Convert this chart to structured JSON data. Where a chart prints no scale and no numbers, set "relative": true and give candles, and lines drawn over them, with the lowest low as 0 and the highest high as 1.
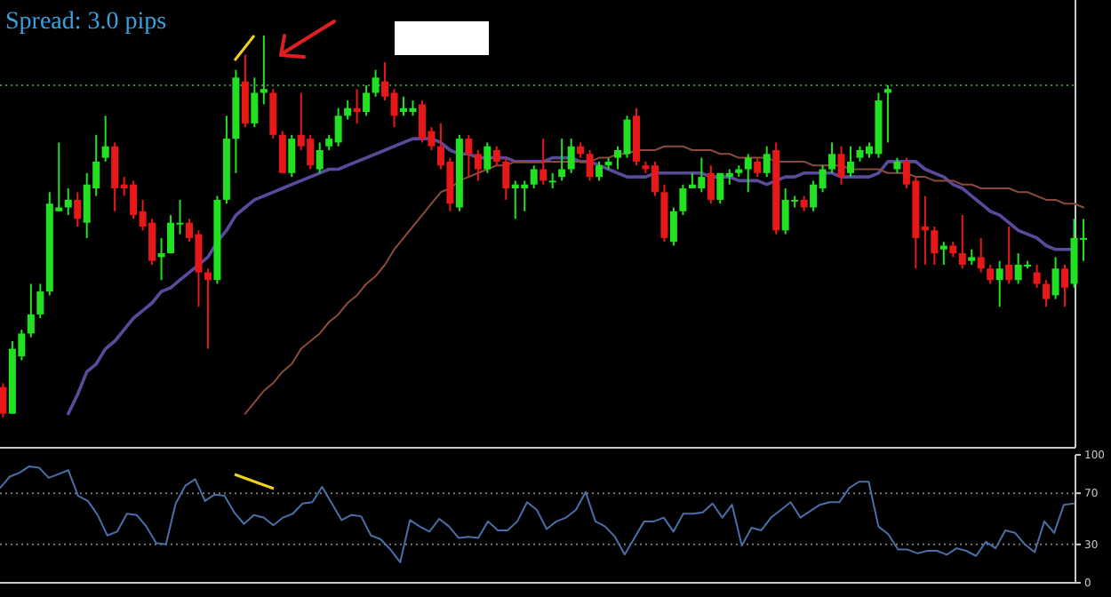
{
  "chart_data": [
    {
      "type": "candlestick",
      "title": "Spread: 3.0 pips",
      "relative": true,
      "tick_labels": false,
      "categories": [
        null,
        null,
        null,
        null,
        null,
        null,
        null,
        null,
        null,
        null,
        null,
        null,
        null,
        null,
        null,
        null,
        null,
        null,
        null,
        null,
        null,
        null,
        null,
        null,
        null,
        null,
        null,
        null,
        null,
        null,
        null,
        null,
        null,
        null,
        null,
        null,
        null,
        null,
        null,
        null,
        null,
        null,
        null,
        null,
        null,
        null,
        null,
        null,
        null,
        null,
        null,
        null,
        null,
        null,
        null,
        null,
        null,
        null,
        null,
        null,
        null,
        null,
        null,
        null,
        null,
        null,
        null,
        null,
        null,
        null,
        null,
        null,
        null,
        null,
        null,
        null,
        null,
        null,
        null,
        null,
        null,
        null,
        null,
        null,
        null,
        null,
        null,
        null,
        null,
        null,
        null,
        null,
        null,
        null,
        null,
        null,
        null,
        null,
        null,
        null,
        null,
        null,
        null,
        null,
        null,
        null,
        null,
        null,
        null,
        null,
        null,
        null,
        null,
        null,
        null,
        null,
        null
      ],
      "ohlc": [
        [
          0.08,
          0.09,
          0,
          0.01
        ],
        [
          0.01,
          0.2,
          0.01,
          0.18
        ],
        [
          0.16,
          0.23,
          0.15,
          0.22
        ],
        [
          0.22,
          0.35,
          0.21,
          0.27
        ],
        [
          0.27,
          0.35,
          0.26,
          0.33
        ],
        [
          0.33,
          0.59,
          0.32,
          0.56
        ],
        [
          0.54,
          0.72,
          0.54,
          0.55
        ],
        [
          0.55,
          0.6,
          0.53,
          0.57
        ],
        [
          0.57,
          0.59,
          0.5,
          0.52
        ],
        [
          0.51,
          0.64,
          0.47,
          0.61
        ],
        [
          0.6,
          0.74,
          0.58,
          0.67
        ],
        [
          0.68,
          0.79,
          0.67,
          0.71
        ],
        [
          0.71,
          0.72,
          0.54,
          0.6
        ],
        [
          0.61,
          0.63,
          0.58,
          0.6
        ],
        [
          0.61,
          0.62,
          0.52,
          0.53
        ],
        [
          0.54,
          0.57,
          0.49,
          0.5
        ],
        [
          0.51,
          0.52,
          0.4,
          0.41
        ],
        [
          0.42,
          0.47,
          0.36,
          0.43
        ],
        [
          0.43,
          0.53,
          0.43,
          0.51
        ],
        [
          0.51,
          0.57,
          0.48,
          0.51
        ],
        [
          0.51,
          0.52,
          0.46,
          0.47
        ],
        [
          0.48,
          0.49,
          0.29,
          0.38
        ],
        [
          0.38,
          0.39,
          0.18,
          0.36
        ],
        [
          0.36,
          0.58,
          0.35,
          0.57
        ],
        [
          0.57,
          0.79,
          0.56,
          0.73
        ],
        [
          0.73,
          0.91,
          0.64,
          0.89
        ],
        [
          0.88,
          0.95,
          0.76,
          0.77
        ],
        [
          0.77,
          0.89,
          0.76,
          0.85
        ],
        [
          0.85,
          1,
          0.82,
          0.86
        ],
        [
          0.85,
          0.86,
          0.73,
          0.74
        ],
        [
          0.74,
          0.75,
          0.64,
          0.64
        ],
        [
          0.64,
          0.74,
          0.63,
          0.73
        ],
        [
          0.74,
          0.85,
          0.7,
          0.71
        ],
        [
          0.73,
          0.74,
          0.65,
          0.66
        ],
        [
          0.65,
          0.72,
          0.64,
          0.7
        ],
        [
          0.71,
          0.74,
          0.7,
          0.73
        ],
        [
          0.72,
          0.81,
          0.71,
          0.79
        ],
        [
          0.79,
          0.83,
          0.78,
          0.81
        ],
        [
          0.81,
          0.86,
          0.77,
          0.8
        ],
        [
          0.8,
          0.87,
          0.79,
          0.85
        ],
        [
          0.85,
          0.91,
          0.84,
          0.89
        ],
        [
          0.88,
          0.93,
          0.83,
          0.84
        ],
        [
          0.85,
          0.86,
          0.76,
          0.79
        ],
        [
          0.8,
          0.84,
          0.79,
          0.81
        ],
        [
          0.8,
          0.83,
          0.79,
          0.81
        ],
        [
          0.82,
          0.83,
          0.72,
          0.73
        ],
        [
          0.75,
          0.76,
          0.7,
          0.71
        ],
        [
          0.71,
          0.77,
          0.65,
          0.66
        ],
        [
          0.67,
          0.68,
          0.54,
          0.56
        ],
        [
          0.55,
          0.74,
          0.54,
          0.73
        ],
        [
          0.73,
          0.74,
          0.63,
          0.69
        ],
        [
          0.69,
          0.7,
          0.62,
          0.65
        ],
        [
          0.65,
          0.72,
          0.64,
          0.71
        ],
        [
          0.7,
          0.71,
          0.66,
          0.67
        ],
        [
          0.67,
          0.68,
          0.57,
          0.6
        ],
        [
          0.6,
          0.62,
          0.52,
          0.61
        ],
        [
          0.6,
          0.62,
          0.54,
          0.61
        ],
        [
          0.61,
          0.66,
          0.6,
          0.65
        ],
        [
          0.65,
          0.73,
          0.61,
          0.62
        ],
        [
          0.62,
          0.64,
          0.6,
          0.62
        ],
        [
          0.63,
          0.73,
          0.62,
          0.65
        ],
        [
          0.65,
          0.73,
          0.64,
          0.71
        ],
        [
          0.71,
          0.72,
          0.68,
          0.69
        ],
        [
          0.69,
          0.7,
          0.62,
          0.63
        ],
        [
          0.63,
          0.67,
          0.62,
          0.66
        ],
        [
          0.66,
          0.68,
          0.65,
          0.67
        ],
        [
          0.68,
          0.71,
          0.65,
          0.7
        ],
        [
          0.69,
          0.79,
          0.68,
          0.78
        ],
        [
          0.79,
          0.81,
          0.66,
          0.67
        ],
        [
          0.66,
          0.67,
          0.64,
          0.65
        ],
        [
          0.66,
          0.67,
          0.58,
          0.59
        ],
        [
          0.59,
          0.61,
          0.46,
          0.47
        ],
        [
          0.46,
          0.55,
          0.45,
          0.54
        ],
        [
          0.54,
          0.61,
          0.53,
          0.6
        ],
        [
          0.6,
          0.64,
          0.6,
          0.61
        ],
        [
          0.6,
          0.68,
          0.59,
          0.63
        ],
        [
          0.64,
          0.66,
          0.56,
          0.57
        ],
        [
          0.57,
          0.64,
          0.56,
          0.64
        ],
        [
          0.63,
          0.65,
          0.61,
          0.64
        ],
        [
          0.64,
          0.66,
          0.63,
          0.65
        ],
        [
          0.65,
          0.69,
          0.59,
          0.68
        ],
        [
          0.67,
          0.68,
          0.63,
          0.64
        ],
        [
          0.64,
          0.71,
          0.63,
          0.69
        ],
        [
          0.7,
          0.72,
          0.48,
          0.49
        ],
        [
          0.49,
          0.6,
          0.48,
          0.57
        ],
        [
          0.57,
          0.58,
          0.55,
          0.57
        ],
        [
          0.57,
          0.58,
          0.54,
          0.55
        ],
        [
          0.55,
          0.62,
          0.54,
          0.61
        ],
        [
          0.6,
          0.66,
          0.59,
          0.65
        ],
        [
          0.65,
          0.72,
          0.64,
          0.69
        ],
        [
          0.69,
          0.71,
          0.61,
          0.63
        ],
        [
          0.64,
          0.71,
          0.63,
          0.67
        ],
        [
          0.68,
          0.71,
          0.67,
          0.7
        ],
        [
          0.69,
          0.72,
          0.68,
          0.71
        ],
        [
          0.69,
          0.85,
          0.68,
          0.83
        ],
        [
          0.85,
          0.87,
          0.72,
          0.86
        ],
        [
          0.65,
          0.68,
          0.64,
          0.67
        ],
        [
          0.67,
          0.68,
          0.6,
          0.61
        ],
        [
          0.62,
          0.63,
          0.39,
          0.47
        ],
        [
          0.5,
          0.58,
          0.4,
          0.49
        ],
        [
          0.49,
          0.5,
          0.4,
          0.43
        ],
        [
          0.44,
          0.46,
          0.4,
          0.45
        ],
        [
          0.45,
          0.46,
          0.42,
          0.43
        ],
        [
          0.43,
          0.53,
          0.39,
          0.4
        ],
        [
          0.41,
          0.44,
          0.4,
          0.42
        ],
        [
          0.42,
          0.47,
          0.38,
          0.39
        ],
        [
          0.39,
          0.4,
          0.35,
          0.36
        ],
        [
          0.36,
          0.41,
          0.29,
          0.39
        ],
        [
          0.4,
          0.5,
          0.35,
          0.36
        ],
        [
          0.36,
          0.43,
          0.35,
          0.4
        ],
        [
          0.4,
          0.41,
          0.39,
          0.4
        ],
        [
          0.38,
          0.4,
          0.34,
          0.35
        ],
        [
          0.35,
          0.36,
          0.29,
          0.31
        ],
        [
          0.32,
          0.42,
          0.31,
          0.39
        ],
        [
          0.39,
          0.4,
          0.29,
          0.34
        ],
        [
          0.35,
          0.52,
          0.34,
          0.47
        ],
        [
          0.47,
          0.52,
          0.41,
          0.47
        ]
      ],
      "series": [
        {
          "type": "line",
          "color": "#5a4a9c",
          "values": [
            null,
            null,
            null,
            null,
            null,
            null,
            null,
            0.01,
            0.06,
            0.12,
            0.14,
            0.18,
            0.2,
            0.23,
            0.26,
            0.28,
            0.3,
            0.33,
            0.34,
            0.36,
            0.38,
            0.4,
            0.42,
            0.46,
            0.49,
            0.53,
            0.55,
            0.57,
            0.58,
            0.59,
            0.6,
            0.61,
            0.62,
            0.63,
            0.64,
            0.65,
            0.65,
            0.66,
            0.67,
            0.68,
            0.69,
            0.7,
            0.71,
            0.72,
            0.73,
            0.73,
            0.73,
            0.72,
            0.7,
            0.69,
            0.69,
            0.68,
            0.68,
            0.68,
            0.68,
            0.67,
            0.67,
            0.67,
            0.67,
            0.68,
            0.68,
            0.68,
            0.67,
            0.67,
            0.66,
            0.65,
            0.64,
            0.63,
            0.63,
            0.63,
            0.64,
            0.64,
            0.64,
            0.64,
            0.64,
            0.64,
            0.63,
            0.63,
            0.63,
            0.62,
            0.62,
            0.62,
            0.61,
            0.62,
            0.63,
            0.63,
            0.64,
            0.64,
            0.64,
            0.64,
            0.63,
            0.63,
            0.63,
            0.63,
            0.64,
            0.67,
            0.67,
            0.67,
            0.67,
            0.65,
            0.64,
            0.63,
            0.61,
            0.6,
            0.58,
            0.56,
            0.54,
            0.53,
            0.51,
            0.49,
            0.48,
            0.47,
            0.45,
            0.44,
            0.44,
            0.44,
            null
          ]
        },
        {
          "type": "line",
          "color": "#8a4a3c",
          "values": [
            null,
            null,
            null,
            null,
            null,
            null,
            null,
            null,
            null,
            null,
            null,
            null,
            null,
            null,
            null,
            null,
            null,
            null,
            null,
            null,
            null,
            null,
            null,
            null,
            null,
            null,
            0.01,
            0.04,
            0.07,
            0.09,
            0.12,
            0.14,
            0.18,
            0.2,
            0.22,
            0.25,
            0.27,
            0.3,
            0.32,
            0.35,
            0.37,
            0.4,
            0.44,
            0.47,
            0.5,
            0.53,
            0.56,
            0.59,
            0.6,
            0.62,
            0.63,
            0.64,
            0.65,
            0.66,
            0.66,
            0.67,
            0.67,
            0.67,
            0.67,
            0.67,
            0.67,
            0.67,
            0.67,
            0.67,
            0.68,
            0.68,
            0.69,
            0.69,
            0.7,
            0.7,
            0.7,
            0.71,
            0.71,
            0.71,
            0.7,
            0.7,
            0.7,
            0.69,
            0.69,
            0.68,
            0.68,
            0.68,
            0.68,
            0.67,
            0.67,
            0.67,
            0.67,
            0.66,
            0.66,
            0.66,
            0.66,
            0.65,
            0.65,
            0.65,
            0.65,
            0.64,
            0.64,
            0.64,
            0.63,
            0.63,
            0.62,
            0.62,
            0.62,
            0.61,
            0.61,
            0.6,
            0.6,
            0.6,
            0.6,
            0.59,
            0.59,
            0.58,
            0.57,
            0.57,
            0.56,
            0.56,
            0.55
          ]
        }
      ],
      "ref_lines": [
        {
          "axis": "y",
          "value": 0.87,
          "color": "#2f8f2f",
          "line_style": "dotted"
        }
      ]
    },
    {
      "type": "line",
      "ylim": [
        0,
        100
      ],
      "yticks": [
        0,
        30,
        70,
        100
      ],
      "tick_labels": "y",
      "categories": [
        null,
        null,
        null,
        null,
        null,
        null,
        null,
        null,
        null,
        null,
        null,
        null,
        null,
        null,
        null,
        null,
        null,
        null,
        null,
        null,
        null,
        null,
        null,
        null,
        null,
        null,
        null,
        null,
        null,
        null,
        null,
        null,
        null,
        null,
        null,
        null,
        null,
        null,
        null,
        null,
        null,
        null,
        null,
        null,
        null,
        null,
        null,
        null,
        null,
        null,
        null,
        null,
        null,
        null,
        null,
        null,
        null,
        null,
        null,
        null,
        null,
        null,
        null,
        null,
        null,
        null,
        null,
        null,
        null,
        null,
        null,
        null,
        null,
        null,
        null,
        null,
        null,
        null,
        null,
        null,
        null,
        null,
        null,
        null,
        null,
        null,
        null,
        null,
        null,
        null,
        null,
        null,
        null,
        null,
        null,
        null,
        null,
        null,
        null,
        null,
        null,
        null,
        null,
        null,
        null,
        null,
        null,
        null,
        null,
        null,
        null
      ],
      "series": [
        {
          "color": "#4a6ea8",
          "values": [
            74,
            83,
            86,
            91,
            90,
            82,
            85,
            88,
            68,
            64,
            53,
            37,
            40,
            54,
            53,
            44,
            31,
            30,
            62,
            76,
            81,
            64,
            69,
            68,
            55,
            46,
            53,
            51,
            45,
            51,
            54,
            62,
            63,
            75,
            62,
            49,
            53,
            52,
            37,
            34,
            26,
            16,
            49,
            44,
            40,
            50,
            44,
            35,
            36,
            35,
            48,
            41,
            41,
            48,
            63,
            57,
            42,
            48,
            51,
            57,
            71,
            48,
            44,
            36,
            22,
            35,
            48,
            48,
            51,
            40,
            54,
            54,
            55,
            62,
            51,
            61,
            29,
            43,
            41,
            51,
            57,
            63,
            51,
            56,
            61,
            63,
            63,
            74,
            79,
            79,
            44,
            38,
            26,
            26,
            23,
            25,
            25,
            22,
            27,
            25,
            21,
            32,
            27,
            41,
            39,
            30,
            24,
            48,
            39,
            61,
            62
          ]
        }
      ],
      "ref_lines": [
        {
          "axis": "y",
          "value": 70,
          "color": "#777777",
          "line_style": "dotted"
        },
        {
          "axis": "y",
          "value": 30,
          "color": "#777777",
          "line_style": "dotted"
        }
      ]
    }
  ]
}
